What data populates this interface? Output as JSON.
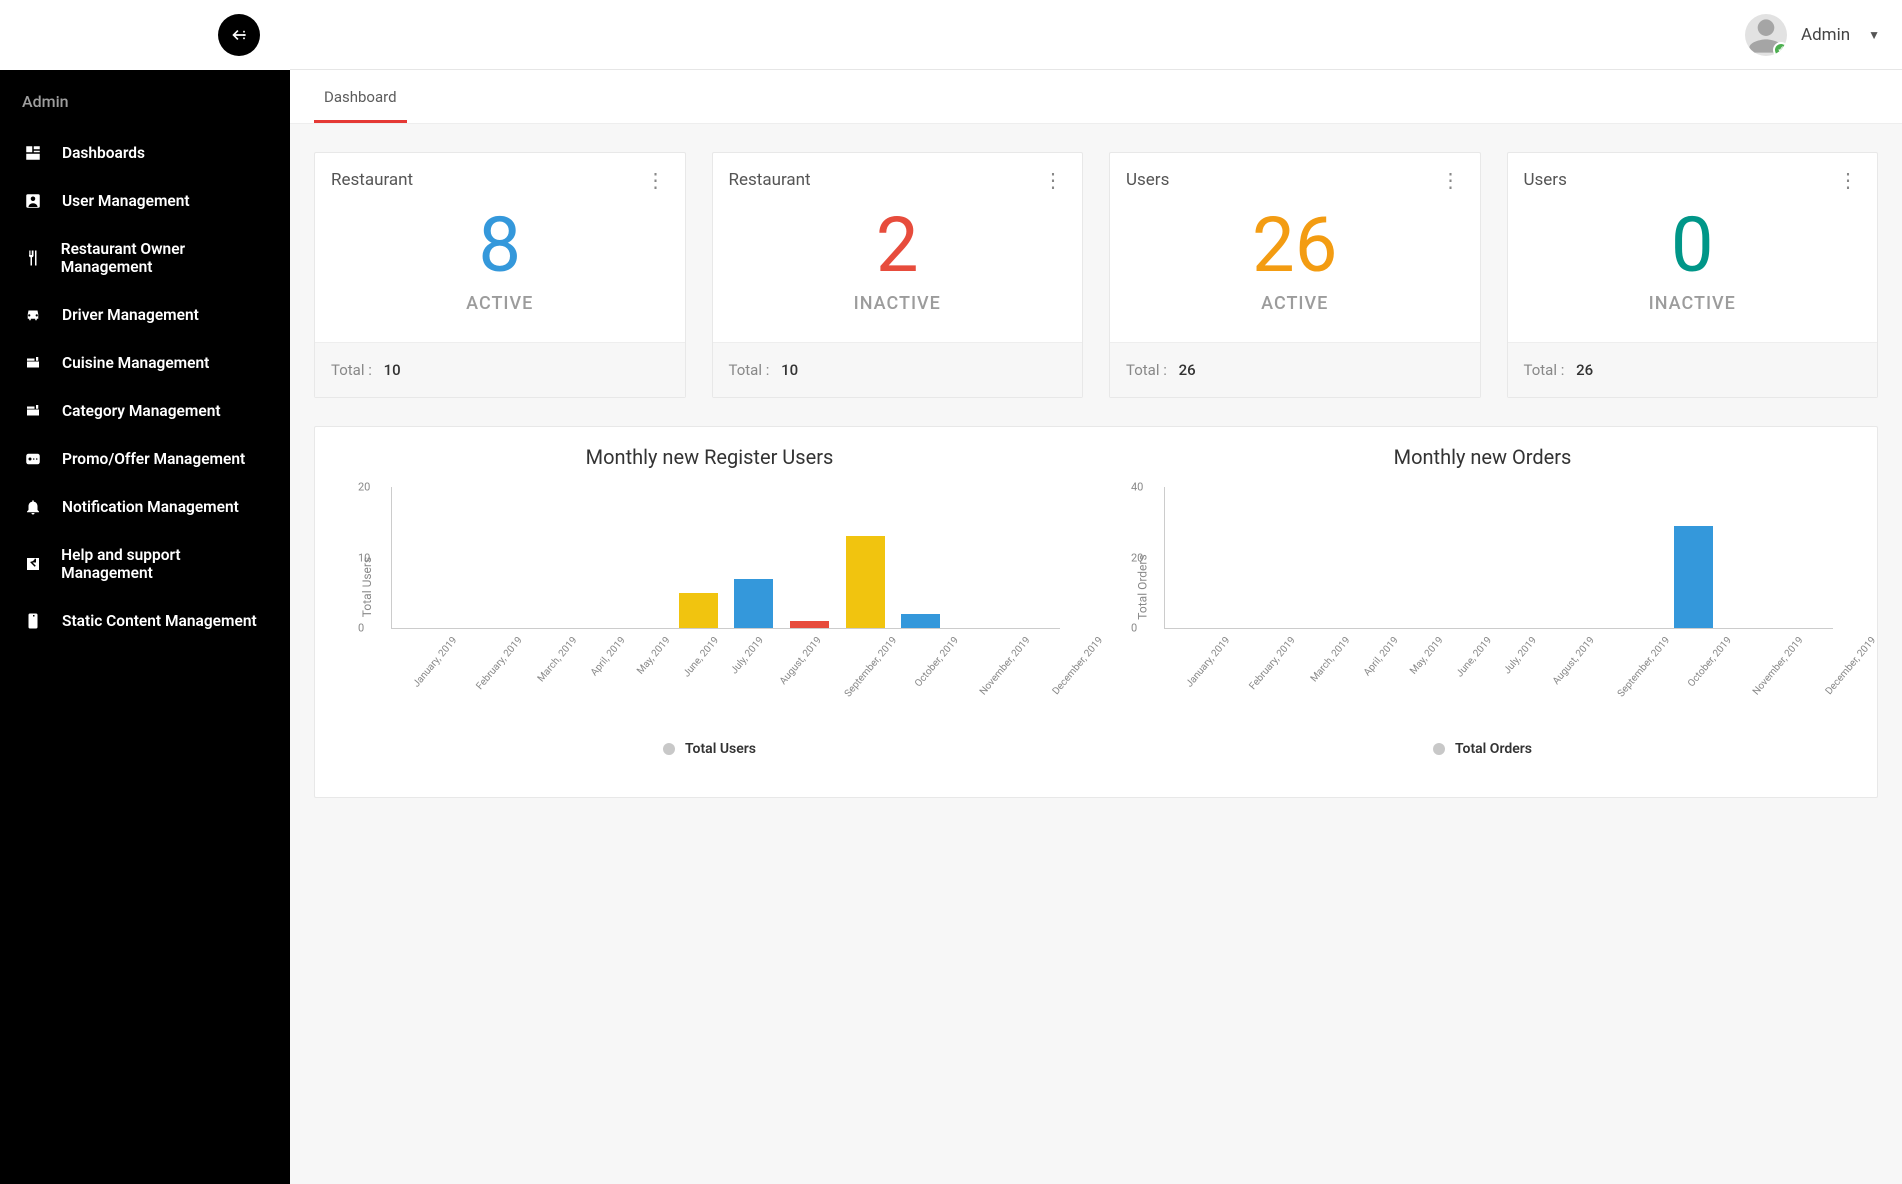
{
  "colors": {
    "blue": "#3498db",
    "red": "#e74c3c",
    "orange": "#f39c12",
    "teal": "#009688",
    "yellow_bar": "#f1c40f",
    "blue_bar": "#3498db",
    "red_bar": "#e74c3c",
    "accent": "#e53935"
  },
  "sidebar": {
    "heading": "Admin",
    "items": [
      {
        "icon": "dashboards",
        "label": "Dashboards"
      },
      {
        "icon": "user",
        "label": "User Management"
      },
      {
        "icon": "restaurant",
        "label": "Restaurant Owner Management"
      },
      {
        "icon": "driver",
        "label": "Driver Management"
      },
      {
        "icon": "cuisine",
        "label": "Cuisine Management"
      },
      {
        "icon": "category",
        "label": "Category Management"
      },
      {
        "icon": "promo",
        "label": "Promo/Offer Management"
      },
      {
        "icon": "notification",
        "label": "Notification Management"
      },
      {
        "icon": "help",
        "label": "Help and support Management"
      },
      {
        "icon": "static",
        "label": "Static Content Management"
      }
    ]
  },
  "topbar": {
    "username": "Admin"
  },
  "tabs": {
    "active": "Dashboard"
  },
  "cards": [
    {
      "title": "Restaurant",
      "value": "8",
      "status": "ACTIVE",
      "color": "blue",
      "total_label": "Total :",
      "total": "10"
    },
    {
      "title": "Restaurant",
      "value": "2",
      "status": "INACTIVE",
      "color": "red",
      "total_label": "Total :",
      "total": "10"
    },
    {
      "title": "Users",
      "value": "26",
      "status": "ACTIVE",
      "color": "orange",
      "total_label": "Total :",
      "total": "26"
    },
    {
      "title": "Users",
      "value": "0",
      "status": "INACTIVE",
      "color": "teal",
      "total_label": "Total :",
      "total": "26"
    }
  ],
  "charts": {
    "months": [
      "January, 2019",
      "February, 2019",
      "March, 2019",
      "April, 2019",
      "May, 2019",
      "June, 2019",
      "July, 2019",
      "August, 2019",
      "September, 2019",
      "October, 2019",
      "November, 2019",
      "December, 2019"
    ],
    "users": {
      "title": "Monthly new Register Users",
      "ylabel": "Total Users",
      "ymax": 20,
      "yticks": [
        0,
        10,
        20
      ],
      "bars": [
        {
          "value": 0,
          "color": null
        },
        {
          "value": 0,
          "color": null
        },
        {
          "value": 0,
          "color": null
        },
        {
          "value": 0,
          "color": null
        },
        {
          "value": 0,
          "color": null
        },
        {
          "value": 5,
          "color": "yellow_bar"
        },
        {
          "value": 7,
          "color": "blue_bar"
        },
        {
          "value": 1,
          "color": "red_bar"
        },
        {
          "value": 13,
          "color": "yellow_bar"
        },
        {
          "value": 2,
          "color": "blue_bar"
        },
        {
          "value": 0,
          "color": null
        },
        {
          "value": 0,
          "color": null
        }
      ],
      "legend": "Total Users"
    },
    "orders": {
      "title": "Monthly new Orders",
      "ylabel": "Total Orders",
      "ymax": 40,
      "yticks": [
        0,
        20,
        40
      ],
      "bars": [
        {
          "value": 0,
          "color": null
        },
        {
          "value": 0,
          "color": null
        },
        {
          "value": 0,
          "color": null
        },
        {
          "value": 0,
          "color": null
        },
        {
          "value": 0,
          "color": null
        },
        {
          "value": 0,
          "color": null
        },
        {
          "value": 0,
          "color": null
        },
        {
          "value": 0,
          "color": null
        },
        {
          "value": 0,
          "color": null
        },
        {
          "value": 29,
          "color": "blue_bar"
        },
        {
          "value": 0,
          "color": null
        },
        {
          "value": 0,
          "color": null
        }
      ],
      "legend": "Total Orders"
    }
  }
}
